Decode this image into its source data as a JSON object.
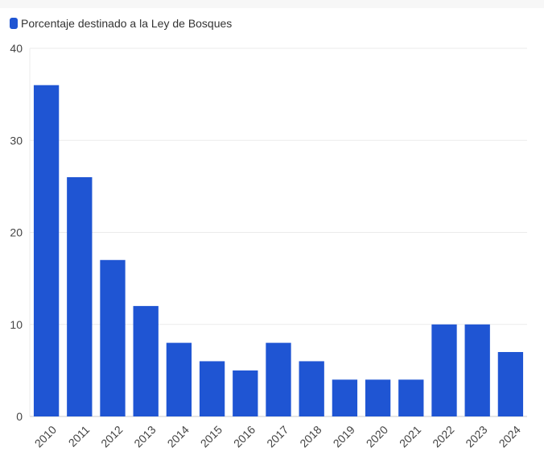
{
  "chart_data": {
    "type": "bar",
    "categories": [
      "2010",
      "2011",
      "2012",
      "2013",
      "2014",
      "2015",
      "2016",
      "2017",
      "2018",
      "2019",
      "2020",
      "2021",
      "2022",
      "2023",
      "2024"
    ],
    "series": [
      {
        "name": "Porcentaje destinado a la Ley de Bosques",
        "values": [
          36,
          26,
          17,
          12,
          8,
          6,
          5,
          8,
          6,
          4,
          4,
          4,
          10,
          10,
          7
        ]
      }
    ],
    "ylim": [
      0,
      40
    ],
    "yticks": [
      0,
      10,
      20,
      30,
      40
    ],
    "grid": true,
    "legend_position": "top-left",
    "colors": {
      "bar": "#1f55d3",
      "grid": "#ebebeb",
      "axis": "#cccccc",
      "text": "#444444"
    }
  }
}
